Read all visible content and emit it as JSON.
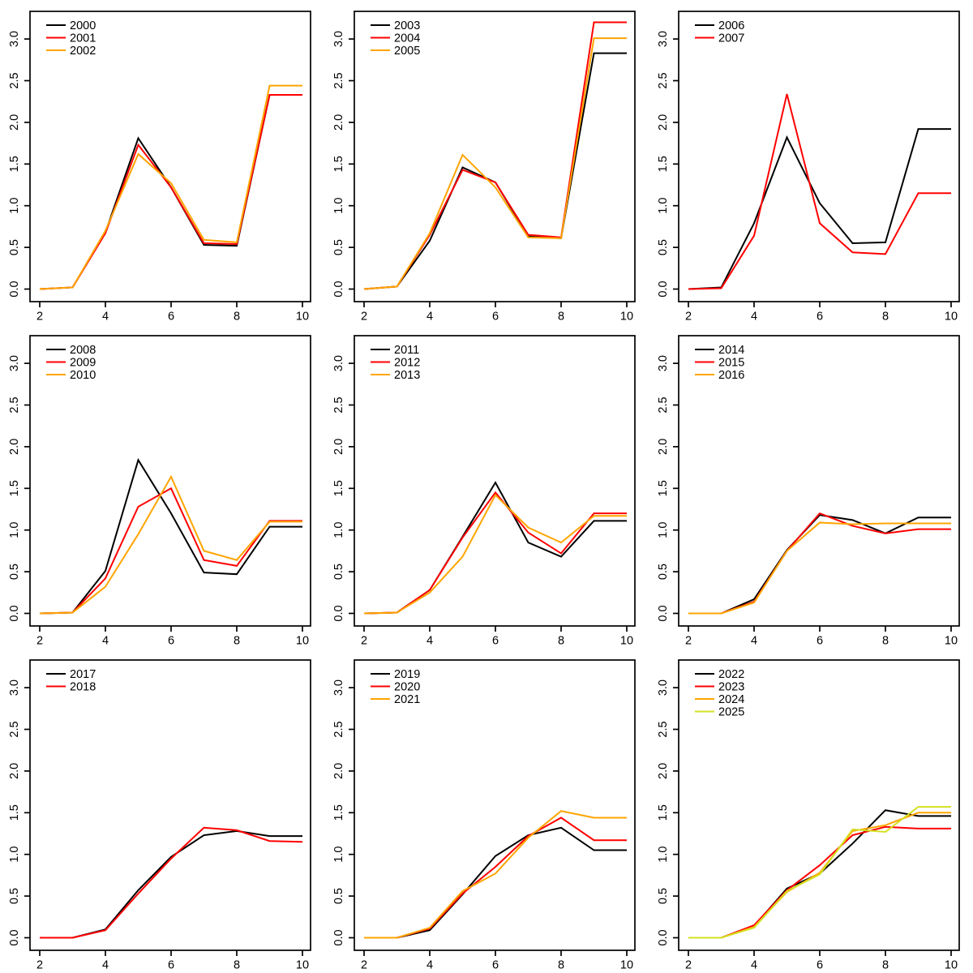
{
  "figure": {
    "rows": 3,
    "cols": 3,
    "background": "#FFFFFF",
    "grid_lines": "off",
    "palette": {
      "series1": "#000000",
      "series2": "#FF0000",
      "series3": "#FFA500",
      "series4": "#D4E021"
    }
  },
  "axes_common": {
    "x_ticks": [
      2,
      4,
      6,
      8,
      10
    ],
    "y_ticks": [
      0.0,
      0.5,
      1.0,
      1.5,
      2.0,
      2.5,
      3.0
    ],
    "y_tick_labels": [
      "0.0",
      "0.5",
      "1.0",
      "1.5",
      "2.0",
      "2.5",
      "3.0"
    ],
    "xlabel": "",
    "ylabel": "",
    "legend_position": "top-left"
  },
  "chart_data": [
    {
      "type": "line",
      "x": [
        2,
        3,
        4,
        5,
        6,
        7,
        8,
        9,
        10
      ],
      "xlim": [
        2,
        10
      ],
      "ylim": [
        0,
        3.3
      ],
      "title": "",
      "legend": [
        "2000",
        "2001",
        "2002"
      ],
      "series": [
        {
          "name": "2000",
          "color": "#000000",
          "values": [
            0,
            0.02,
            0.68,
            1.81,
            1.22,
            0.53,
            0.52,
            2.33,
            2.33
          ]
        },
        {
          "name": "2001",
          "color": "#FF0000",
          "values": [
            0,
            0.02,
            0.67,
            1.73,
            1.22,
            0.55,
            0.54,
            2.33,
            2.33
          ]
        },
        {
          "name": "2002",
          "color": "#FFA500",
          "values": [
            0,
            0.02,
            0.7,
            1.62,
            1.27,
            0.59,
            0.56,
            2.44,
            2.44
          ]
        }
      ]
    },
    {
      "type": "line",
      "x": [
        2,
        3,
        4,
        5,
        6,
        7,
        8,
        9,
        10
      ],
      "xlim": [
        2,
        10
      ],
      "ylim": [
        0,
        3.3
      ],
      "title": "",
      "legend": [
        "2003",
        "2004",
        "2005"
      ],
      "series": [
        {
          "name": "2003",
          "color": "#000000",
          "values": [
            0,
            0.03,
            0.58,
            1.46,
            1.28,
            0.63,
            0.61,
            2.83,
            2.83
          ]
        },
        {
          "name": "2004",
          "color": "#FF0000",
          "values": [
            0,
            0.03,
            0.65,
            1.43,
            1.28,
            0.65,
            0.62,
            3.2,
            3.2
          ]
        },
        {
          "name": "2005",
          "color": "#FFA500",
          "values": [
            0,
            0.03,
            0.67,
            1.61,
            1.22,
            0.62,
            0.61,
            3.01,
            3.01
          ]
        }
      ]
    },
    {
      "type": "line",
      "x": [
        2,
        3,
        4,
        5,
        6,
        7,
        8,
        9,
        10
      ],
      "xlim": [
        2,
        10
      ],
      "ylim": [
        0,
        3.3
      ],
      "title": "",
      "legend": [
        "2006",
        "2007"
      ],
      "series": [
        {
          "name": "2006",
          "color": "#000000",
          "values": [
            0,
            0.02,
            0.79,
            1.82,
            1.03,
            0.55,
            0.56,
            1.92,
            1.92
          ]
        },
        {
          "name": "2007",
          "color": "#FF0000",
          "values": [
            0,
            0.01,
            0.64,
            2.34,
            0.79,
            0.44,
            0.42,
            1.15,
            1.15
          ]
        }
      ]
    },
    {
      "type": "line",
      "x": [
        2,
        3,
        4,
        5,
        6,
        7,
        8,
        9,
        10
      ],
      "xlim": [
        2,
        10
      ],
      "ylim": [
        0,
        3.3
      ],
      "title": "",
      "legend": [
        "2008",
        "2009",
        "2010"
      ],
      "series": [
        {
          "name": "2008",
          "color": "#000000",
          "values": [
            0,
            0.01,
            0.51,
            1.84,
            1.2,
            0.49,
            0.47,
            1.04,
            1.04
          ]
        },
        {
          "name": "2009",
          "color": "#FF0000",
          "values": [
            0,
            0.01,
            0.42,
            1.28,
            1.5,
            0.64,
            0.57,
            1.11,
            1.11
          ]
        },
        {
          "name": "2010",
          "color": "#FFA500",
          "values": [
            0,
            0.01,
            0.32,
            0.95,
            1.64,
            0.75,
            0.64,
            1.1,
            1.1
          ]
        }
      ]
    },
    {
      "type": "line",
      "x": [
        2,
        3,
        4,
        5,
        6,
        7,
        8,
        9,
        10
      ],
      "xlim": [
        2,
        10
      ],
      "ylim": [
        0,
        3.3
      ],
      "title": "",
      "legend": [
        "2011",
        "2012",
        "2013"
      ],
      "series": [
        {
          "name": "2011",
          "color": "#000000",
          "values": [
            0,
            0.01,
            0.28,
            0.92,
            1.57,
            0.85,
            0.68,
            1.11,
            1.11
          ]
        },
        {
          "name": "2012",
          "color": "#FF0000",
          "values": [
            0,
            0.01,
            0.28,
            0.91,
            1.45,
            0.97,
            0.72,
            1.2,
            1.2
          ]
        },
        {
          "name": "2013",
          "color": "#FFA500",
          "values": [
            0,
            0.01,
            0.25,
            0.68,
            1.42,
            1.03,
            0.85,
            1.17,
            1.17
          ]
        }
      ]
    },
    {
      "type": "line",
      "x": [
        2,
        3,
        4,
        5,
        6,
        7,
        8,
        9,
        10
      ],
      "xlim": [
        2,
        10
      ],
      "ylim": [
        0,
        3.3
      ],
      "title": "",
      "legend": [
        "2014",
        "2015",
        "2016"
      ],
      "series": [
        {
          "name": "2014",
          "color": "#000000",
          "values": [
            0,
            0,
            0.17,
            0.76,
            1.18,
            1.12,
            0.96,
            1.15,
            1.15
          ]
        },
        {
          "name": "2015",
          "color": "#FF0000",
          "values": [
            0,
            0,
            0.14,
            0.75,
            1.2,
            1.05,
            0.96,
            1.01,
            1.01
          ]
        },
        {
          "name": "2016",
          "color": "#FFA500",
          "values": [
            0,
            0,
            0.13,
            0.75,
            1.09,
            1.07,
            1.08,
            1.08,
            1.08
          ]
        }
      ]
    },
    {
      "type": "line",
      "x": [
        2,
        3,
        4,
        5,
        6,
        7,
        8,
        9,
        10
      ],
      "xlim": [
        2,
        10
      ],
      "ylim": [
        0,
        3.3
      ],
      "title": "",
      "legend": [
        "2017",
        "2018"
      ],
      "series": [
        {
          "name": "2017",
          "color": "#000000",
          "values": [
            0,
            0,
            0.1,
            0.57,
            0.97,
            1.23,
            1.28,
            1.22,
            1.22
          ]
        },
        {
          "name": "2018",
          "color": "#FF0000",
          "values": [
            0,
            0,
            0.09,
            0.53,
            0.95,
            1.32,
            1.29,
            1.16,
            1.15
          ]
        }
      ]
    },
    {
      "type": "line",
      "x": [
        2,
        3,
        4,
        5,
        6,
        7,
        8,
        9,
        10
      ],
      "xlim": [
        2,
        10
      ],
      "ylim": [
        0,
        3.3
      ],
      "title": "",
      "legend": [
        "2019",
        "2020",
        "2021"
      ],
      "series": [
        {
          "name": "2019",
          "color": "#000000",
          "values": [
            0,
            0,
            0.09,
            0.52,
            0.98,
            1.23,
            1.32,
            1.05,
            1.05
          ]
        },
        {
          "name": "2020",
          "color": "#FF0000",
          "values": [
            0,
            0,
            0.11,
            0.53,
            0.85,
            1.22,
            1.44,
            1.17,
            1.17
          ]
        },
        {
          "name": "2021",
          "color": "#FFA500",
          "values": [
            0,
            0,
            0.12,
            0.56,
            0.77,
            1.2,
            1.52,
            1.44,
            1.44
          ]
        }
      ]
    },
    {
      "type": "line",
      "x": [
        2,
        3,
        4,
        5,
        6,
        7,
        8,
        9,
        10
      ],
      "xlim": [
        2,
        10
      ],
      "ylim": [
        0,
        3.3
      ],
      "title": "",
      "legend": [
        "2022",
        "2023",
        "2024",
        "2025"
      ],
      "series": [
        {
          "name": "2022",
          "color": "#000000",
          "values": [
            0,
            0,
            0.14,
            0.59,
            0.77,
            1.13,
            1.53,
            1.46,
            1.46
          ]
        },
        {
          "name": "2023",
          "color": "#FF0000",
          "values": [
            0,
            0,
            0.15,
            0.57,
            0.87,
            1.23,
            1.33,
            1.31,
            1.31
          ]
        },
        {
          "name": "2024",
          "color": "#FFA500",
          "values": [
            0,
            0,
            0.13,
            0.55,
            0.78,
            1.28,
            1.35,
            1.5,
            1.5
          ]
        },
        {
          "name": "2025",
          "color": "#D4E021",
          "values": [
            0,
            0,
            0.12,
            0.56,
            0.76,
            1.3,
            1.27,
            1.57,
            1.57
          ]
        }
      ]
    }
  ]
}
